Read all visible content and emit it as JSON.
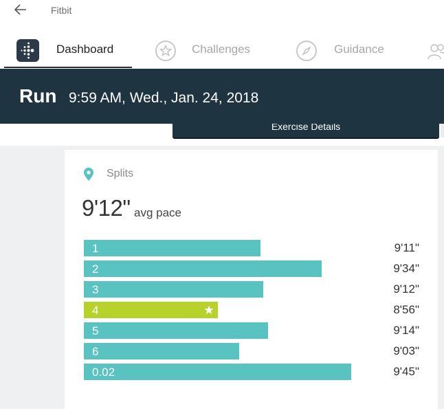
{
  "app": {
    "title": "Fitbit"
  },
  "nav": {
    "tabs": [
      {
        "label": "Dashboard"
      },
      {
        "label": "Challenges"
      },
      {
        "label": "Guidance"
      }
    ]
  },
  "activity": {
    "title": "Run",
    "datetime": "9:59 AM, Wed., Jan. 24, 2018",
    "exercise_details_label": "Exercise Details"
  },
  "splits": {
    "label": "Splits",
    "avg_pace": "9'12\"",
    "avg_pace_label": "avg pace",
    "items": [
      {
        "label": "1",
        "pace": "9'11\"",
        "best": false,
        "fill": 0.66
      },
      {
        "label": "2",
        "pace": "9'34\"",
        "best": false,
        "fill": 0.89
      },
      {
        "label": "3",
        "pace": "9'12\"",
        "best": false,
        "fill": 0.67
      },
      {
        "label": "4",
        "pace": "8'56\"",
        "best": true,
        "fill": 0.5
      },
      {
        "label": "5",
        "pace": "9'14\"",
        "best": false,
        "fill": 0.69
      },
      {
        "label": "6",
        "pace": "9'03\"",
        "best": false,
        "fill": 0.58
      },
      {
        "label": "0.02",
        "pace": "9'45\"",
        "best": false,
        "fill": 1.0
      }
    ]
  },
  "colors": {
    "header_bg": "#1f3441",
    "split_bar": "#58c3c1",
    "best_split_bar": "#b7d22b",
    "location_pin": "#58c3c1"
  },
  "icons": {
    "back": "back-arrow-icon",
    "dashboard": "fitbit-dots-icon",
    "challenges": "star-badge-icon",
    "guidance": "compass-icon",
    "community": "people-icon",
    "splits": "location-pin-icon",
    "best_split": "star-icon"
  }
}
